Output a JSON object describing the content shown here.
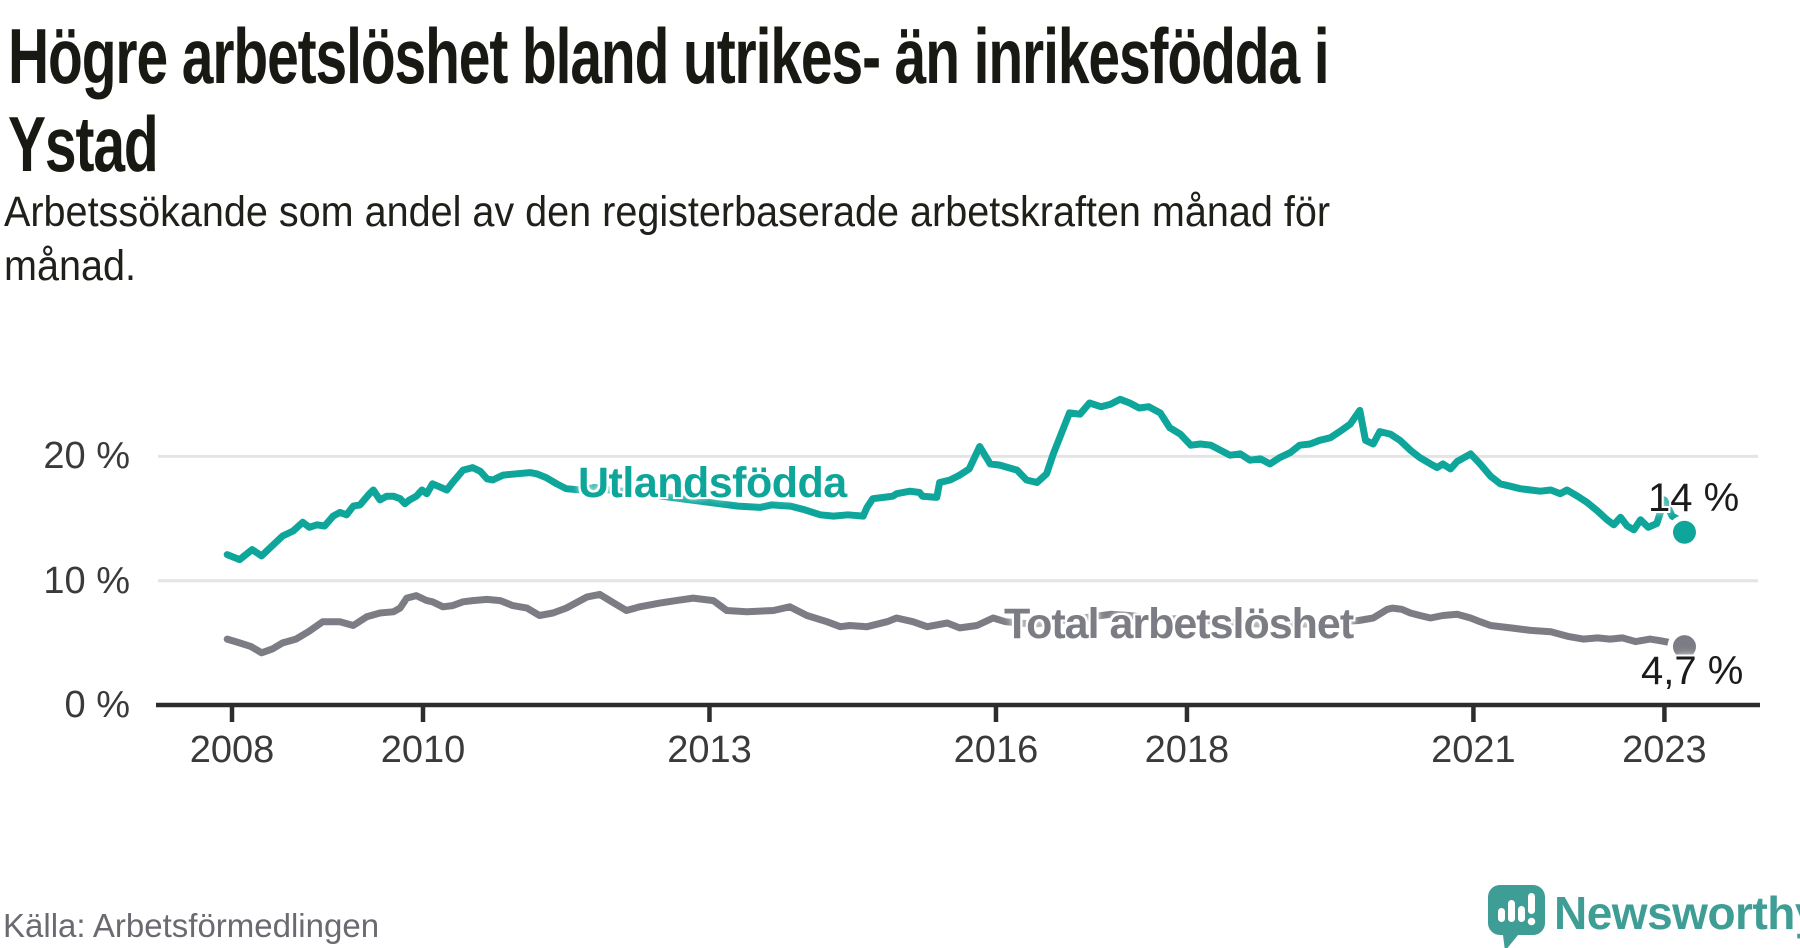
{
  "header": {
    "title_line1": "Högre arbetslöshet bland utrikes- än inrikesfödda i",
    "title_line2": "Ystad",
    "subtitle_line1": "Arbetssökande som andel av den registerbaserade arbetskraften månad för",
    "subtitle_line2": "månad."
  },
  "footer": {
    "source": "Källa: Arbetsförmedlingen",
    "brand": "Newsworthy",
    "brand_color": "#3e9d95"
  },
  "chart_data": {
    "type": "line",
    "title": "Högre arbetslöshet bland utrikes- än inrikesfödda i Ystad",
    "subtitle": "Arbetssökande som andel av den registerbaserade arbetskraften månad för månad.",
    "source": "Källa: Arbetsförmedlingen",
    "unit": "%",
    "grid": "horizontal",
    "legend_position": "inline-labels",
    "xlim": [
      2007.225,
      2023.98
    ],
    "ylim": [
      0,
      28
    ],
    "x_ticks": [
      {
        "v": 2008,
        "label": "2008"
      },
      {
        "v": 2010,
        "label": "2010"
      },
      {
        "v": 2013,
        "label": "2013"
      },
      {
        "v": 2016,
        "label": "2016"
      },
      {
        "v": 2018,
        "label": "2018"
      },
      {
        "v": 2021,
        "label": "2021"
      },
      {
        "v": 2023,
        "label": "2023"
      }
    ],
    "y_ticks": [
      {
        "v": 20,
        "label": "20 %"
      },
      {
        "v": 10,
        "label": "10 %"
      },
      {
        "v": 0,
        "label": "0 %"
      }
    ],
    "colors": {
      "grid": "#e4e4e4",
      "axis": "#2d2d2d",
      "tick_text": "#3a3a3a"
    },
    "series": [
      {
        "name": "Utlandsfödda",
        "color": "#0ea69b",
        "end_label": "14 %",
        "end_value": 14,
        "points": [
          [
            2007.95,
            12.1
          ],
          [
            2008.08,
            11.7
          ],
          [
            2008.21,
            12.5
          ],
          [
            2008.31,
            12.0
          ],
          [
            2008.42,
            12.8
          ],
          [
            2008.53,
            13.6
          ],
          [
            2008.64,
            14.0
          ],
          [
            2008.74,
            14.7
          ],
          [
            2008.81,
            14.3
          ],
          [
            2008.89,
            14.5
          ],
          [
            2008.97,
            14.4
          ],
          [
            2009.06,
            15.2
          ],
          [
            2009.13,
            15.5
          ],
          [
            2009.2,
            15.3
          ],
          [
            2009.27,
            16.0
          ],
          [
            2009.34,
            16.1
          ],
          [
            2009.44,
            17.0
          ],
          [
            2009.48,
            17.3
          ],
          [
            2009.55,
            16.5
          ],
          [
            2009.62,
            16.8
          ],
          [
            2009.69,
            16.8
          ],
          [
            2009.76,
            16.6
          ],
          [
            2009.81,
            16.2
          ],
          [
            2009.86,
            16.5
          ],
          [
            2009.93,
            16.8
          ],
          [
            2009.99,
            17.3
          ],
          [
            2010.04,
            17.0
          ],
          [
            2010.1,
            17.8
          ],
          [
            2010.16,
            17.6
          ],
          [
            2010.25,
            17.3
          ],
          [
            2010.31,
            17.9
          ],
          [
            2010.42,
            18.9
          ],
          [
            2010.52,
            19.1
          ],
          [
            2010.6,
            18.8
          ],
          [
            2010.67,
            18.2
          ],
          [
            2010.73,
            18.1
          ],
          [
            2010.84,
            18.5
          ],
          [
            2010.98,
            18.6
          ],
          [
            2011.12,
            18.7
          ],
          [
            2011.19,
            18.6
          ],
          [
            2011.29,
            18.3
          ],
          [
            2011.4,
            17.8
          ],
          [
            2011.5,
            17.4
          ],
          [
            2011.65,
            17.3
          ],
          [
            2011.8,
            17.5
          ],
          [
            2011.95,
            17.3
          ],
          [
            2012.1,
            17.2
          ],
          [
            2012.3,
            17.0
          ],
          [
            2012.5,
            16.8
          ],
          [
            2012.7,
            16.6
          ],
          [
            2012.9,
            16.4
          ],
          [
            2013.1,
            16.2
          ],
          [
            2013.3,
            16.0
          ],
          [
            2013.53,
            15.9
          ],
          [
            2013.65,
            16.1
          ],
          [
            2013.85,
            16.0
          ],
          [
            2014.0,
            15.7
          ],
          [
            2014.16,
            15.3
          ],
          [
            2014.3,
            15.2
          ],
          [
            2014.45,
            15.3
          ],
          [
            2014.61,
            15.2
          ],
          [
            2014.65,
            15.9
          ],
          [
            2014.71,
            16.6
          ],
          [
            2014.92,
            16.8
          ],
          [
            2014.96,
            17.0
          ],
          [
            2015.1,
            17.2
          ],
          [
            2015.2,
            17.1
          ],
          [
            2015.23,
            16.8
          ],
          [
            2015.38,
            16.7
          ],
          [
            2015.41,
            17.9
          ],
          [
            2015.52,
            18.1
          ],
          [
            2015.62,
            18.5
          ],
          [
            2015.72,
            19.0
          ],
          [
            2015.83,
            20.8
          ],
          [
            2015.94,
            19.4
          ],
          [
            2016.04,
            19.3
          ],
          [
            2016.22,
            18.9
          ],
          [
            2016.32,
            18.1
          ],
          [
            2016.43,
            17.9
          ],
          [
            2016.53,
            18.6
          ],
          [
            2016.6,
            20.2
          ],
          [
            2016.77,
            23.5
          ],
          [
            2016.88,
            23.4
          ],
          [
            2016.98,
            24.3
          ],
          [
            2017.1,
            24.0
          ],
          [
            2017.2,
            24.2
          ],
          [
            2017.3,
            24.6
          ],
          [
            2017.4,
            24.3
          ],
          [
            2017.5,
            23.9
          ],
          [
            2017.6,
            24.0
          ],
          [
            2017.72,
            23.5
          ],
          [
            2017.82,
            22.3
          ],
          [
            2017.93,
            21.8
          ],
          [
            2018.04,
            20.9
          ],
          [
            2018.14,
            21.0
          ],
          [
            2018.25,
            20.9
          ],
          [
            2018.35,
            20.5
          ],
          [
            2018.45,
            20.1
          ],
          [
            2018.56,
            20.2
          ],
          [
            2018.66,
            19.7
          ],
          [
            2018.77,
            19.8
          ],
          [
            2018.87,
            19.4
          ],
          [
            2018.97,
            19.9
          ],
          [
            2019.08,
            20.3
          ],
          [
            2019.18,
            20.9
          ],
          [
            2019.29,
            21.0
          ],
          [
            2019.39,
            21.3
          ],
          [
            2019.5,
            21.5
          ],
          [
            2019.6,
            22.0
          ],
          [
            2019.71,
            22.6
          ],
          [
            2019.81,
            23.7
          ],
          [
            2019.87,
            21.3
          ],
          [
            2019.95,
            21.0
          ],
          [
            2020.02,
            22.0
          ],
          [
            2020.13,
            21.8
          ],
          [
            2020.23,
            21.3
          ],
          [
            2020.34,
            20.5
          ],
          [
            2020.44,
            19.9
          ],
          [
            2020.55,
            19.4
          ],
          [
            2020.62,
            19.1
          ],
          [
            2020.68,
            19.4
          ],
          [
            2020.76,
            19.0
          ],
          [
            2020.83,
            19.6
          ],
          [
            2020.97,
            20.2
          ],
          [
            2021.07,
            19.4
          ],
          [
            2021.18,
            18.4
          ],
          [
            2021.28,
            17.8
          ],
          [
            2021.39,
            17.6
          ],
          [
            2021.49,
            17.4
          ],
          [
            2021.6,
            17.3
          ],
          [
            2021.7,
            17.2
          ],
          [
            2021.81,
            17.3
          ],
          [
            2021.91,
            17.0
          ],
          [
            2021.98,
            17.3
          ],
          [
            2022.09,
            16.8
          ],
          [
            2022.19,
            16.3
          ],
          [
            2022.3,
            15.6
          ],
          [
            2022.4,
            14.9
          ],
          [
            2022.47,
            14.5
          ],
          [
            2022.54,
            15.1
          ],
          [
            2022.61,
            14.4
          ],
          [
            2022.68,
            14.1
          ],
          [
            2022.75,
            14.9
          ],
          [
            2022.83,
            14.3
          ],
          [
            2022.92,
            14.6
          ],
          [
            2023.0,
            16.5
          ],
          [
            2023.08,
            15.2
          ],
          [
            2023.13,
            15.0
          ],
          [
            2023.21,
            13.9
          ]
        ]
      },
      {
        "name": "Total arbetslöshet",
        "color": "#7c7c84",
        "end_label": "4,7 %",
        "end_value": 4.7,
        "points": [
          [
            2007.95,
            5.3
          ],
          [
            2008.08,
            5.0
          ],
          [
            2008.2,
            4.7
          ],
          [
            2008.31,
            4.2
          ],
          [
            2008.42,
            4.5
          ],
          [
            2008.53,
            5.0
          ],
          [
            2008.67,
            5.3
          ],
          [
            2008.8,
            5.9
          ],
          [
            2008.95,
            6.7
          ],
          [
            2009.13,
            6.7
          ],
          [
            2009.27,
            6.4
          ],
          [
            2009.41,
            7.1
          ],
          [
            2009.55,
            7.4
          ],
          [
            2009.69,
            7.5
          ],
          [
            2009.76,
            7.8
          ],
          [
            2009.83,
            8.6
          ],
          [
            2009.93,
            8.8
          ],
          [
            2010.04,
            8.4
          ],
          [
            2010.1,
            8.3
          ],
          [
            2010.21,
            7.9
          ],
          [
            2010.31,
            8.0
          ],
          [
            2010.42,
            8.3
          ],
          [
            2010.52,
            8.4
          ],
          [
            2010.67,
            8.5
          ],
          [
            2010.81,
            8.4
          ],
          [
            2010.94,
            8.0
          ],
          [
            2011.09,
            7.8
          ],
          [
            2011.22,
            7.2
          ],
          [
            2011.36,
            7.4
          ],
          [
            2011.5,
            7.8
          ],
          [
            2011.72,
            8.7
          ],
          [
            2011.85,
            8.9
          ],
          [
            2012.0,
            8.2
          ],
          [
            2012.13,
            7.6
          ],
          [
            2012.27,
            7.9
          ],
          [
            2012.48,
            8.2
          ],
          [
            2012.65,
            8.4
          ],
          [
            2012.83,
            8.6
          ],
          [
            2013.04,
            8.4
          ],
          [
            2013.18,
            7.6
          ],
          [
            2013.39,
            7.5
          ],
          [
            2013.67,
            7.6
          ],
          [
            2013.84,
            7.9
          ],
          [
            2014.02,
            7.2
          ],
          [
            2014.23,
            6.7
          ],
          [
            2014.37,
            6.3
          ],
          [
            2014.47,
            6.4
          ],
          [
            2014.65,
            6.3
          ],
          [
            2014.86,
            6.7
          ],
          [
            2014.96,
            7.0
          ],
          [
            2015.13,
            6.7
          ],
          [
            2015.28,
            6.3
          ],
          [
            2015.49,
            6.6
          ],
          [
            2015.62,
            6.2
          ],
          [
            2015.8,
            6.4
          ],
          [
            2015.97,
            7.0
          ],
          [
            2016.1,
            6.7
          ],
          [
            2016.25,
            6.6
          ],
          [
            2016.4,
            6.5
          ],
          [
            2016.6,
            6.7
          ],
          [
            2016.8,
            6.9
          ],
          [
            2017.0,
            7.1
          ],
          [
            2017.2,
            7.3
          ],
          [
            2017.4,
            7.2
          ],
          [
            2017.6,
            7.0
          ],
          [
            2017.8,
            6.9
          ],
          [
            2018.0,
            7.0
          ],
          [
            2018.2,
            6.8
          ],
          [
            2018.4,
            6.7
          ],
          [
            2018.6,
            6.6
          ],
          [
            2018.8,
            6.5
          ],
          [
            2019.0,
            6.4
          ],
          [
            2019.2,
            6.5
          ],
          [
            2019.4,
            6.6
          ],
          [
            2019.6,
            6.7
          ],
          [
            2019.8,
            6.8
          ],
          [
            2019.95,
            7.0
          ],
          [
            2020.1,
            7.7
          ],
          [
            2020.15,
            7.8
          ],
          [
            2020.25,
            7.7
          ],
          [
            2020.34,
            7.4
          ],
          [
            2020.44,
            7.2
          ],
          [
            2020.55,
            7.0
          ],
          [
            2020.68,
            7.2
          ],
          [
            2020.83,
            7.3
          ],
          [
            2020.97,
            7.0
          ],
          [
            2021.07,
            6.7
          ],
          [
            2021.18,
            6.4
          ],
          [
            2021.39,
            6.2
          ],
          [
            2021.6,
            6.0
          ],
          [
            2021.81,
            5.9
          ],
          [
            2022.0,
            5.5
          ],
          [
            2022.15,
            5.3
          ],
          [
            2022.3,
            5.4
          ],
          [
            2022.43,
            5.3
          ],
          [
            2022.56,
            5.4
          ],
          [
            2022.7,
            5.1
          ],
          [
            2022.85,
            5.3
          ],
          [
            2022.94,
            5.2
          ],
          [
            2023.08,
            5.0
          ],
          [
            2023.15,
            4.9
          ],
          [
            2023.21,
            4.7
          ]
        ]
      }
    ]
  }
}
